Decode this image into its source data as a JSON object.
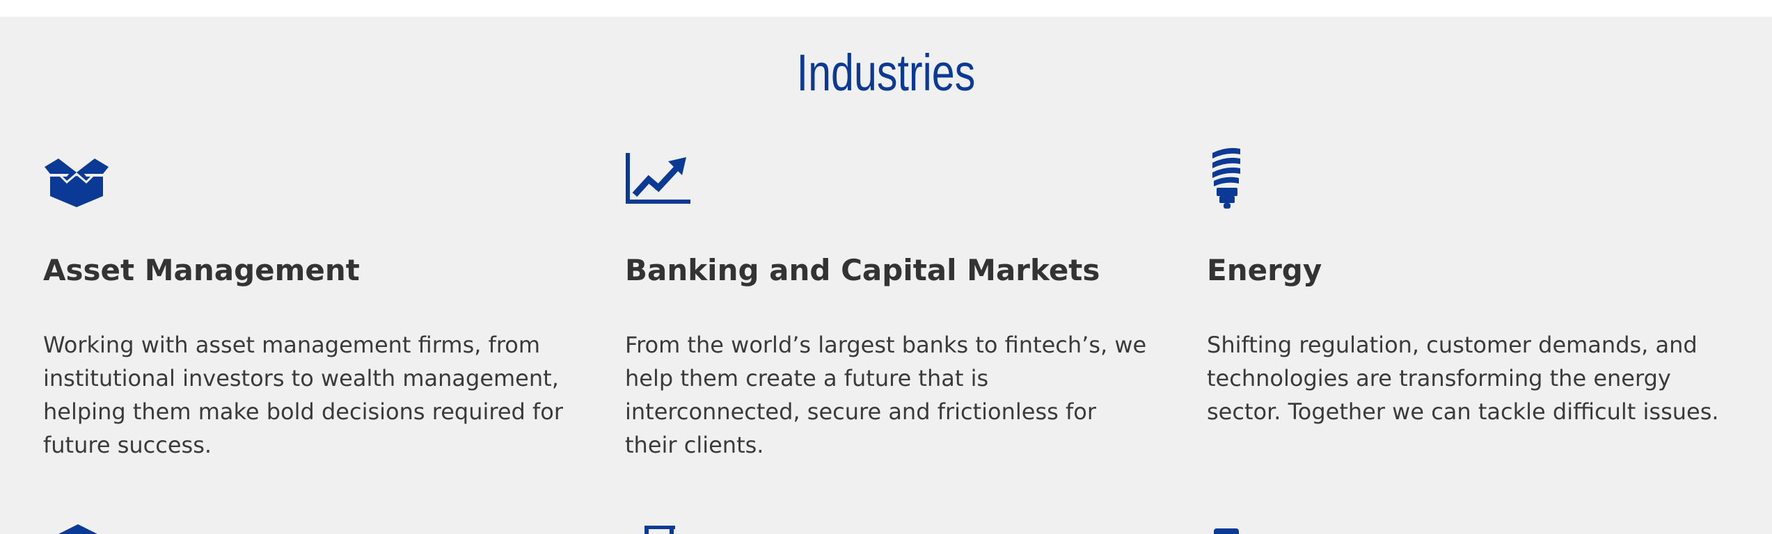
{
  "page": {
    "title": "Industries"
  },
  "industries": [
    {
      "title": "Asset Management",
      "description": "Working with asset management firms, from institutional investors to wealth management, helping them make bold decisions required for future success.",
      "icon": "open-box-icon"
    },
    {
      "title": "Banking and Capital Markets",
      "description": "From the world’s largest banks to fintech’s, we help them create a future that is interconnected, secure and frictionless for their clients.",
      "icon": "line-chart-icon"
    },
    {
      "title": "Energy",
      "description": "Shifting regulation, customer demands, and technologies are transforming the energy sector. Together we can tackle difficult issues.",
      "icon": "lightbulb-icon"
    }
  ],
  "colors": {
    "accent": "#0a3a95",
    "background": "#f0f0f1",
    "text": "#333333"
  }
}
